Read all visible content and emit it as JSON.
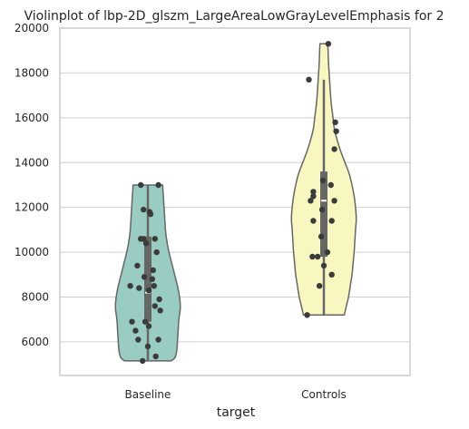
{
  "chart_data": {
    "type": "violin",
    "title": "Violinplot of lbp-2D_glszm_LargeAreaLowGrayLevelEmphasis for 2",
    "xlabel": "target",
    "ylabel": "",
    "categories": [
      "Baseline",
      "Controls"
    ],
    "ylim": [
      4500,
      20000
    ],
    "yticks": [
      6000,
      8000,
      10000,
      12000,
      14000,
      16000,
      18000,
      20000
    ],
    "ytick_labels": [
      "6000",
      "8000",
      "10000",
      "12000",
      "14000",
      "16000",
      "18000",
      "20000"
    ],
    "grid": true,
    "colors": {
      "Baseline": "#99ccc2",
      "Controls": "#f7f7bf",
      "outline": "#666666",
      "box": "#666666",
      "points": "#3b3b3b",
      "grid": "#d0d0d0",
      "frame": "#cccccc"
    },
    "violins": [
      {
        "category": "Baseline",
        "min": 5150,
        "max": 13000,
        "median": 8200,
        "q1": 6900,
        "q3": 10700,
        "whisker_low": 5150,
        "whisker_high": 13000,
        "profile": [
          [
            5150,
            0.66
          ],
          [
            5300,
            0.77
          ],
          [
            5600,
            0.82
          ],
          [
            6000,
            0.84
          ],
          [
            6500,
            0.86
          ],
          [
            7000,
            0.88
          ],
          [
            7500,
            0.92
          ],
          [
            8000,
            0.9
          ],
          [
            8500,
            0.84
          ],
          [
            9000,
            0.76
          ],
          [
            9500,
            0.68
          ],
          [
            10000,
            0.6
          ],
          [
            10500,
            0.54
          ],
          [
            11000,
            0.5
          ],
          [
            11500,
            0.48
          ],
          [
            12000,
            0.46
          ],
          [
            12500,
            0.44
          ],
          [
            13000,
            0.42
          ]
        ]
      },
      {
        "category": "Controls",
        "min": 7200,
        "max": 19300,
        "median": 12300,
        "q1": 9800,
        "q3": 13600,
        "whisker_low": 7200,
        "whisker_high": 17700,
        "profile": [
          [
            7200,
            0.58
          ],
          [
            7600,
            0.64
          ],
          [
            8000,
            0.7
          ],
          [
            8500,
            0.75
          ],
          [
            9000,
            0.8
          ],
          [
            9500,
            0.83
          ],
          [
            10000,
            0.86
          ],
          [
            10500,
            0.88
          ],
          [
            11000,
            0.9
          ],
          [
            11500,
            0.92
          ],
          [
            12000,
            0.9
          ],
          [
            12500,
            0.86
          ],
          [
            13000,
            0.8
          ],
          [
            13500,
            0.72
          ],
          [
            14000,
            0.6
          ],
          [
            14500,
            0.48
          ],
          [
            15000,
            0.38
          ],
          [
            15500,
            0.3
          ],
          [
            16000,
            0.26
          ],
          [
            16500,
            0.22
          ],
          [
            17000,
            0.19
          ],
          [
            17500,
            0.17
          ],
          [
            18000,
            0.15
          ],
          [
            18500,
            0.13
          ],
          [
            19000,
            0.12
          ],
          [
            19300,
            0.11
          ]
        ]
      }
    ],
    "points": [
      {
        "category": "Baseline",
        "values": [
          13000,
          13000,
          11900,
          11800,
          11700,
          10600,
          10600,
          10600,
          10400,
          10000,
          9400,
          9200,
          8900,
          8800,
          8500,
          8500,
          8400,
          8300,
          7900,
          7600,
          7400,
          6900,
          6900,
          6700,
          6500,
          6100,
          6100,
          5800,
          5350,
          5150
        ],
        "jitter": [
          -0.08,
          0.12,
          -0.05,
          0.02,
          0.03,
          -0.08,
          -0.05,
          0.08,
          -0.02,
          0.1,
          -0.12,
          0.06,
          -0.04,
          0.05,
          -0.2,
          0.07,
          -0.1,
          0.01,
          0.13,
          0.08,
          0.14,
          -0.18,
          -0.03,
          0.01,
          -0.14,
          -0.11,
          0.12,
          0.0,
          0.09,
          -0.06
        ]
      },
      {
        "category": "Controls",
        "values": [
          19300,
          17700,
          15800,
          15400,
          14600,
          13200,
          13000,
          12700,
          12500,
          12300,
          12300,
          11900,
          11400,
          11400,
          10700,
          10000,
          9800,
          9800,
          9400,
          9000,
          8500,
          7200
        ],
        "jitter": [
          0.05,
          -0.17,
          0.13,
          0.14,
          0.12,
          -0.01,
          0.08,
          -0.12,
          -0.12,
          -0.15,
          0.12,
          -0.02,
          -0.12,
          0.09,
          -0.03,
          0.04,
          -0.13,
          -0.07,
          0.0,
          0.09,
          -0.05,
          -0.19
        ]
      }
    ]
  }
}
